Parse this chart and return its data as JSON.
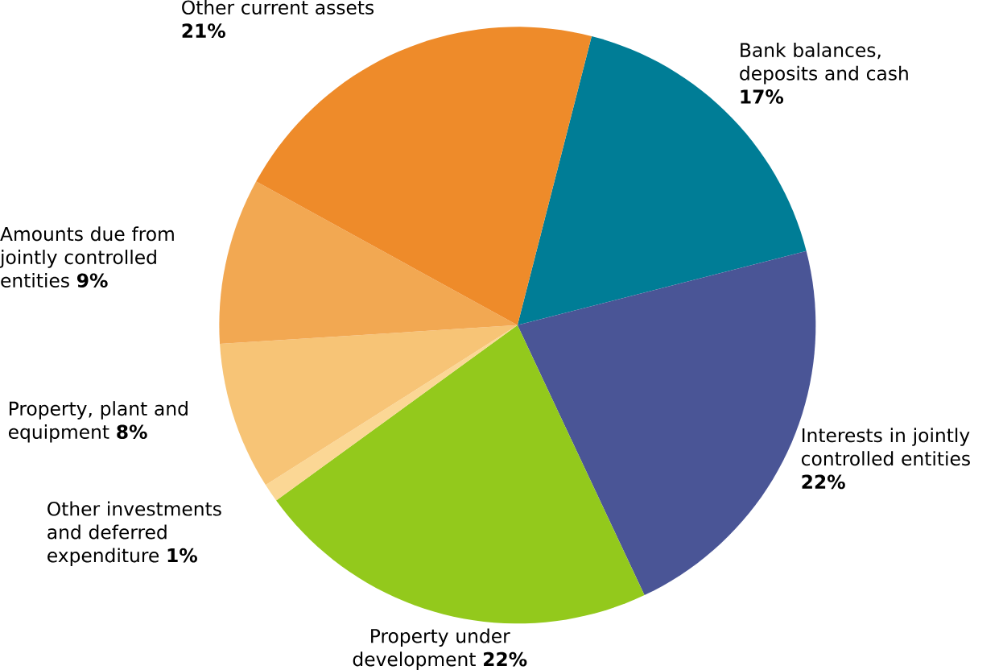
{
  "chart_data": {
    "type": "pie",
    "categories": [
      "Bank balances, deposits and cash",
      "Interests in jointly controlled entities",
      "Property under development",
      "Other investments and deferred expenditure",
      "Property, plant and equipment",
      "Amounts due from jointly controlled entities",
      "Other current assets"
    ],
    "values": [
      17,
      22,
      22,
      1,
      8,
      9,
      21
    ],
    "value_labels": [
      "17%",
      "22%",
      "22%",
      "1%",
      "8%",
      "9%",
      "21%"
    ],
    "colors": [
      "#007d96",
      "#4a5596",
      "#93c91c",
      "#fbd795",
      "#f7c476",
      "#f2a852",
      "#ee8b2a"
    ]
  }
}
